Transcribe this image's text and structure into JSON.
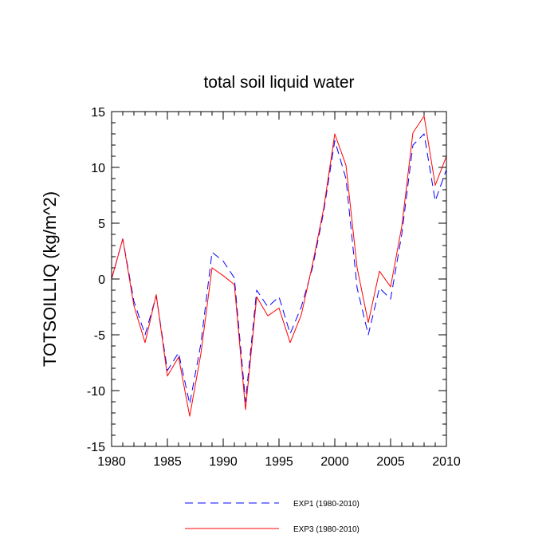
{
  "chart_data": {
    "type": "line",
    "title": "total soil liquid water",
    "xlabel": "",
    "ylabel": "TOTSOILLIQ  (kg/m^2)",
    "xlim": [
      1980,
      2010
    ],
    "ylim": [
      -15,
      15
    ],
    "x": [
      1980,
      1981,
      1982,
      1983,
      1984,
      1985,
      1986,
      1987,
      1988,
      1989,
      1990,
      1991,
      1992,
      1993,
      1994,
      1995,
      1996,
      1997,
      1998,
      1999,
      2000,
      2001,
      2002,
      2003,
      2004,
      2005,
      2006,
      2007,
      2008,
      2009,
      2010
    ],
    "xticks": [
      1980,
      1985,
      1990,
      1995,
      2000,
      2005,
      2010
    ],
    "xtick_labels": [
      "1980",
      "1985",
      "1990",
      "1995",
      "2000",
      "2005",
      "2010"
    ],
    "yticks": [
      -15,
      -10,
      -5,
      0,
      5,
      10,
      15
    ],
    "ytick_labels": [
      "-15",
      "-10",
      "-5",
      "0",
      "5",
      "10",
      "15"
    ],
    "grid": false,
    "legend_position": "bottom",
    "series": [
      {
        "name": "EXP1 (1980-2010)",
        "color": "#0000ff",
        "style": "dashed",
        "values": [
          0.0,
          3.6,
          -2.0,
          -5.0,
          -1.5,
          -8.2,
          -6.6,
          -11.2,
          -5.8,
          2.4,
          1.6,
          0.1,
          -11.0,
          -1.0,
          -2.5,
          -1.6,
          -4.9,
          -2.5,
          1.0,
          6.0,
          12.4,
          9.0,
          -0.8,
          -5.0,
          -0.8,
          -1.8,
          4.0,
          12.0,
          13.0,
          7.0,
          9.8
        ]
      },
      {
        "name": "EXP3 (1980-2010)",
        "color": "#ff0000",
        "style": "solid",
        "values": [
          0.0,
          3.6,
          -2.4,
          -5.7,
          -1.4,
          -8.7,
          -7.0,
          -12.3,
          -6.7,
          1.0,
          0.3,
          -0.5,
          -11.7,
          -1.6,
          -3.3,
          -2.6,
          -5.7,
          -3.2,
          1.3,
          6.3,
          13.0,
          10.2,
          1.0,
          -3.9,
          0.7,
          -0.7,
          4.7,
          13.1,
          14.6,
          8.4,
          11.0
        ]
      }
    ]
  }
}
